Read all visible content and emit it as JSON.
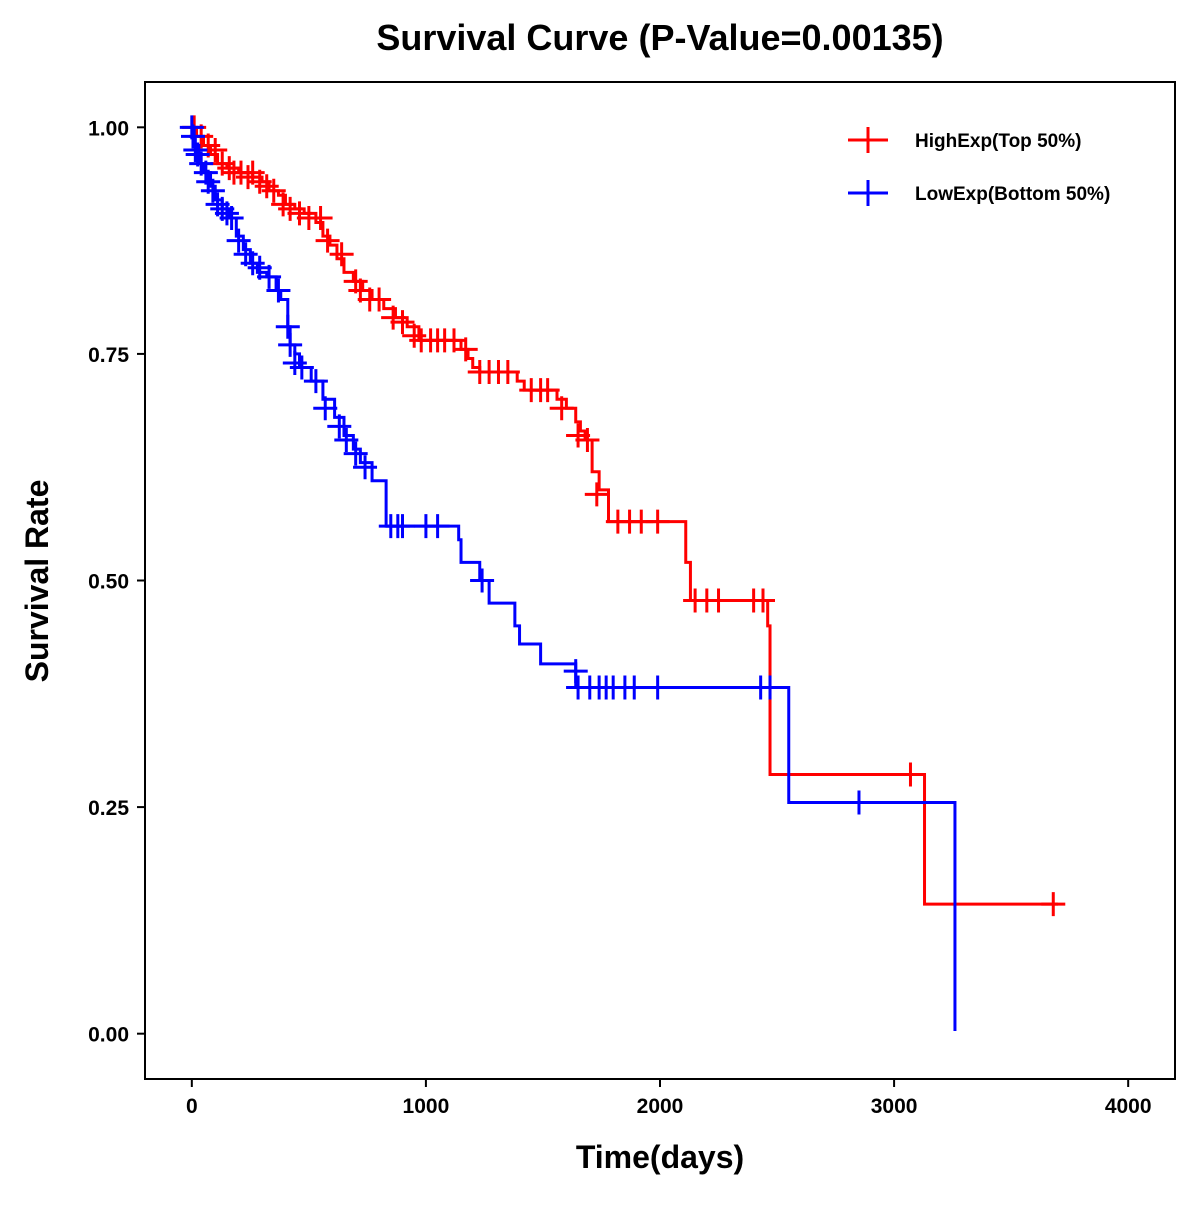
{
  "chart_data": {
    "type": "line",
    "subtype": "kaplan-meier-step",
    "title": "Survival Curve (P-Value=0.00135)",
    "xlabel": "Time(days)",
    "ylabel": "Survival Rate",
    "xlim": [
      -200,
      4200
    ],
    "ylim": [
      -0.05,
      1.05
    ],
    "x_ticks": [
      0,
      1000,
      2000,
      3000,
      4000
    ],
    "x_tick_labels": [
      "0",
      "1000",
      "2000",
      "3000",
      "4000"
    ],
    "y_ticks": [
      0,
      0.25,
      0.5,
      0.75,
      1.0
    ],
    "y_tick_labels": [
      "0.00",
      "0.25",
      "0.50",
      "0.75",
      "1.00"
    ],
    "grid": false,
    "legend_position": "top-right",
    "series": [
      {
        "name": "HighExp(Top 50%)",
        "color": "#ff0000",
        "steps": [
          [
            0,
            1.0
          ],
          [
            20,
            0.99
          ],
          [
            50,
            0.98
          ],
          [
            80,
            0.97
          ],
          [
            110,
            0.96
          ],
          [
            150,
            0.955
          ],
          [
            200,
            0.95
          ],
          [
            260,
            0.945
          ],
          [
            300,
            0.94
          ],
          [
            330,
            0.93
          ],
          [
            370,
            0.925
          ],
          [
            400,
            0.915
          ],
          [
            440,
            0.91
          ],
          [
            480,
            0.905
          ],
          [
            530,
            0.895
          ],
          [
            560,
            0.88
          ],
          [
            590,
            0.87
          ],
          [
            620,
            0.855
          ],
          [
            650,
            0.84
          ],
          [
            690,
            0.83
          ],
          [
            730,
            0.82
          ],
          [
            770,
            0.81
          ],
          [
            820,
            0.8
          ],
          [
            870,
            0.79
          ],
          [
            920,
            0.78
          ],
          [
            970,
            0.765
          ],
          [
            1150,
            0.755
          ],
          [
            1180,
            0.745
          ],
          [
            1200,
            0.735
          ],
          [
            1230,
            0.73
          ],
          [
            1390,
            0.72
          ],
          [
            1420,
            0.71
          ],
          [
            1560,
            0.7
          ],
          [
            1600,
            0.69
          ],
          [
            1640,
            0.675
          ],
          [
            1660,
            0.665
          ],
          [
            1680,
            0.655
          ],
          [
            1710,
            0.62
          ],
          [
            1740,
            0.6
          ],
          [
            1780,
            0.565
          ],
          [
            2110,
            0.52
          ],
          [
            2130,
            0.478
          ],
          [
            2460,
            0.45
          ],
          [
            2470,
            0.286
          ],
          [
            3130,
            0.143
          ],
          [
            3700,
            0.143
          ]
        ],
        "censor_marks": [
          [
            10,
            1.0
          ],
          [
            40,
            0.99
          ],
          [
            70,
            0.98
          ],
          [
            100,
            0.975
          ],
          [
            130,
            0.96
          ],
          [
            160,
            0.955
          ],
          [
            180,
            0.95
          ],
          [
            210,
            0.95
          ],
          [
            240,
            0.945
          ],
          [
            260,
            0.95
          ],
          [
            290,
            0.94
          ],
          [
            320,
            0.935
          ],
          [
            350,
            0.93
          ],
          [
            390,
            0.915
          ],
          [
            420,
            0.91
          ],
          [
            460,
            0.905
          ],
          [
            500,
            0.9
          ],
          [
            550,
            0.9
          ],
          [
            580,
            0.875
          ],
          [
            640,
            0.86
          ],
          [
            700,
            0.83
          ],
          [
            720,
            0.82
          ],
          [
            760,
            0.81
          ],
          [
            800,
            0.81
          ],
          [
            860,
            0.79
          ],
          [
            900,
            0.785
          ],
          [
            950,
            0.77
          ],
          [
            980,
            0.765
          ],
          [
            1020,
            0.765
          ],
          [
            1050,
            0.765
          ],
          [
            1080,
            0.765
          ],
          [
            1120,
            0.765
          ],
          [
            1170,
            0.755
          ],
          [
            1230,
            0.73
          ],
          [
            1270,
            0.73
          ],
          [
            1310,
            0.73
          ],
          [
            1350,
            0.73
          ],
          [
            1450,
            0.71
          ],
          [
            1490,
            0.71
          ],
          [
            1520,
            0.71
          ],
          [
            1580,
            0.69
          ],
          [
            1650,
            0.66
          ],
          [
            1690,
            0.655
          ],
          [
            1730,
            0.595
          ],
          [
            1820,
            0.565
          ],
          [
            1870,
            0.565
          ],
          [
            1920,
            0.565
          ],
          [
            1990,
            0.565
          ],
          [
            2150,
            0.478
          ],
          [
            2200,
            0.478
          ],
          [
            2250,
            0.478
          ],
          [
            2400,
            0.478
          ],
          [
            2440,
            0.478
          ],
          [
            3070,
            0.286
          ],
          [
            3680,
            0.143
          ]
        ]
      },
      {
        "name": "LowExp(Bottom 50%)",
        "color": "#0000ff",
        "steps": [
          [
            0,
            1.0
          ],
          [
            10,
            0.98
          ],
          [
            30,
            0.96
          ],
          [
            50,
            0.95
          ],
          [
            80,
            0.935
          ],
          [
            100,
            0.92
          ],
          [
            130,
            0.91
          ],
          [
            160,
            0.9
          ],
          [
            190,
            0.88
          ],
          [
            220,
            0.865
          ],
          [
            250,
            0.85
          ],
          [
            280,
            0.84
          ],
          [
            320,
            0.835
          ],
          [
            360,
            0.82
          ],
          [
            380,
            0.81
          ],
          [
            410,
            0.78
          ],
          [
            420,
            0.76
          ],
          [
            440,
            0.75
          ],
          [
            460,
            0.735
          ],
          [
            510,
            0.72
          ],
          [
            560,
            0.7
          ],
          [
            610,
            0.68
          ],
          [
            650,
            0.66
          ],
          [
            690,
            0.645
          ],
          [
            720,
            0.63
          ],
          [
            770,
            0.61
          ],
          [
            830,
            0.56
          ],
          [
            1140,
            0.545
          ],
          [
            1150,
            0.52
          ],
          [
            1230,
            0.5
          ],
          [
            1270,
            0.475
          ],
          [
            1380,
            0.45
          ],
          [
            1400,
            0.43
          ],
          [
            1490,
            0.408
          ],
          [
            1640,
            0.382
          ],
          [
            2550,
            0.255
          ],
          [
            3260,
            0.255
          ],
          [
            3260,
            0.003
          ]
        ],
        "censor_marks": [
          [
            0,
            1.0
          ],
          [
            5,
            0.99
          ],
          [
            15,
            0.975
          ],
          [
            25,
            0.97
          ],
          [
            40,
            0.96
          ],
          [
            60,
            0.95
          ],
          [
            70,
            0.94
          ],
          [
            90,
            0.93
          ],
          [
            110,
            0.915
          ],
          [
            130,
            0.91
          ],
          [
            150,
            0.905
          ],
          [
            170,
            0.9
          ],
          [
            200,
            0.875
          ],
          [
            230,
            0.86
          ],
          [
            260,
            0.85
          ],
          [
            290,
            0.845
          ],
          [
            330,
            0.835
          ],
          [
            370,
            0.82
          ],
          [
            410,
            0.78
          ],
          [
            420,
            0.76
          ],
          [
            440,
            0.74
          ],
          [
            470,
            0.735
          ],
          [
            530,
            0.72
          ],
          [
            570,
            0.69
          ],
          [
            630,
            0.67
          ],
          [
            660,
            0.655
          ],
          [
            700,
            0.64
          ],
          [
            740,
            0.625
          ],
          [
            850,
            0.56
          ],
          [
            880,
            0.56
          ],
          [
            900,
            0.56
          ],
          [
            1000,
            0.56
          ],
          [
            1050,
            0.56
          ],
          [
            1240,
            0.5
          ],
          [
            1640,
            0.4
          ],
          [
            1650,
            0.382
          ],
          [
            1700,
            0.382
          ],
          [
            1740,
            0.382
          ],
          [
            1770,
            0.382
          ],
          [
            1800,
            0.382
          ],
          [
            1850,
            0.382
          ],
          [
            1890,
            0.382
          ],
          [
            1990,
            0.382
          ],
          [
            2430,
            0.382
          ],
          [
            2470,
            0.382
          ],
          [
            2850,
            0.255
          ]
        ]
      }
    ]
  }
}
